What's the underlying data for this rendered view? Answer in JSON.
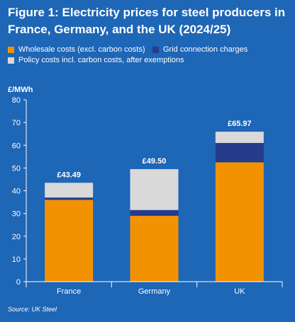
{
  "chart_data": {
    "type": "bar",
    "stacked": true,
    "title": "Figure 1: Electricity prices for steel producers in France, Germany, and the UK (2024/25)",
    "ylabel": "£/MWh",
    "xlabel": "",
    "ylim": [
      0,
      80
    ],
    "yticks": [
      0,
      10,
      20,
      30,
      40,
      50,
      60,
      70,
      80
    ],
    "categories": [
      "France",
      "Germany",
      "UK"
    ],
    "series": [
      {
        "name": "Wholesale costs (excl. carbon costs)",
        "color": "#f39200",
        "values": [
          36.0,
          29.0,
          52.5
        ]
      },
      {
        "name": "Grid connection charges",
        "color": "#253c8c",
        "values": [
          1.0,
          2.5,
          8.5
        ]
      },
      {
        "name": "Policy costs incl. carbon costs, after exemptions",
        "color": "#d9d9d9",
        "values": [
          6.49,
          18.0,
          4.97
        ]
      }
    ],
    "totals": [
      "£43.49",
      "£49.50",
      "£65.97"
    ],
    "grid": false,
    "legend_position": "top-left",
    "source": "Source: UK Steel"
  }
}
